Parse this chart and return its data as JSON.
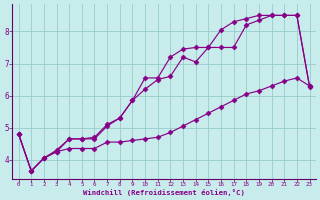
{
  "xlabel": "Windchill (Refroidissement éolien,°C)",
  "bg_color": "#c8ecec",
  "line_color": "#880088",
  "grid_color": "#99cccc",
  "axis_color": "#660066",
  "xlim": [
    -0.5,
    23.5
  ],
  "ylim": [
    3.4,
    8.85
  ],
  "xticks": [
    0,
    1,
    2,
    3,
    4,
    5,
    6,
    7,
    8,
    9,
    10,
    11,
    12,
    13,
    14,
    15,
    16,
    17,
    18,
    19,
    20,
    21,
    22,
    23
  ],
  "yticks": [
    4,
    5,
    6,
    7,
    8
  ],
  "line1_x": [
    0,
    1,
    2,
    3,
    4,
    5,
    6,
    7,
    8,
    9,
    10,
    11,
    12,
    13,
    14,
    15,
    16,
    17,
    18,
    19,
    20,
    21,
    22,
    23
  ],
  "line1_y": [
    4.8,
    3.65,
    4.05,
    4.25,
    4.35,
    4.35,
    4.35,
    4.55,
    4.55,
    4.6,
    4.65,
    4.7,
    4.85,
    5.05,
    5.25,
    5.45,
    5.65,
    5.85,
    6.05,
    6.15,
    6.3,
    6.45,
    6.55,
    6.3
  ],
  "line2_x": [
    0,
    1,
    2,
    3,
    4,
    5,
    6,
    7,
    8,
    9,
    10,
    11,
    12,
    13,
    14,
    15,
    16,
    17,
    18,
    19,
    20,
    21,
    22,
    23
  ],
  "line2_y": [
    4.8,
    3.65,
    4.05,
    4.25,
    4.65,
    4.65,
    4.7,
    5.1,
    5.3,
    5.85,
    6.55,
    6.55,
    7.2,
    7.45,
    7.5,
    7.5,
    8.05,
    8.3,
    8.4,
    8.5,
    8.5,
    8.5,
    8.5,
    6.3
  ],
  "line3_x": [
    0,
    1,
    2,
    3,
    4,
    5,
    6,
    7,
    8,
    9,
    10,
    11,
    12,
    13,
    14,
    15,
    16,
    17,
    18,
    19,
    20,
    21,
    22,
    23
  ],
  "line3_y": [
    4.8,
    3.65,
    4.05,
    4.3,
    4.65,
    4.65,
    4.65,
    5.05,
    5.3,
    5.85,
    6.2,
    6.5,
    6.6,
    7.2,
    7.05,
    7.5,
    7.5,
    7.5,
    8.2,
    8.35,
    8.5,
    8.5,
    8.5,
    6.28
  ]
}
